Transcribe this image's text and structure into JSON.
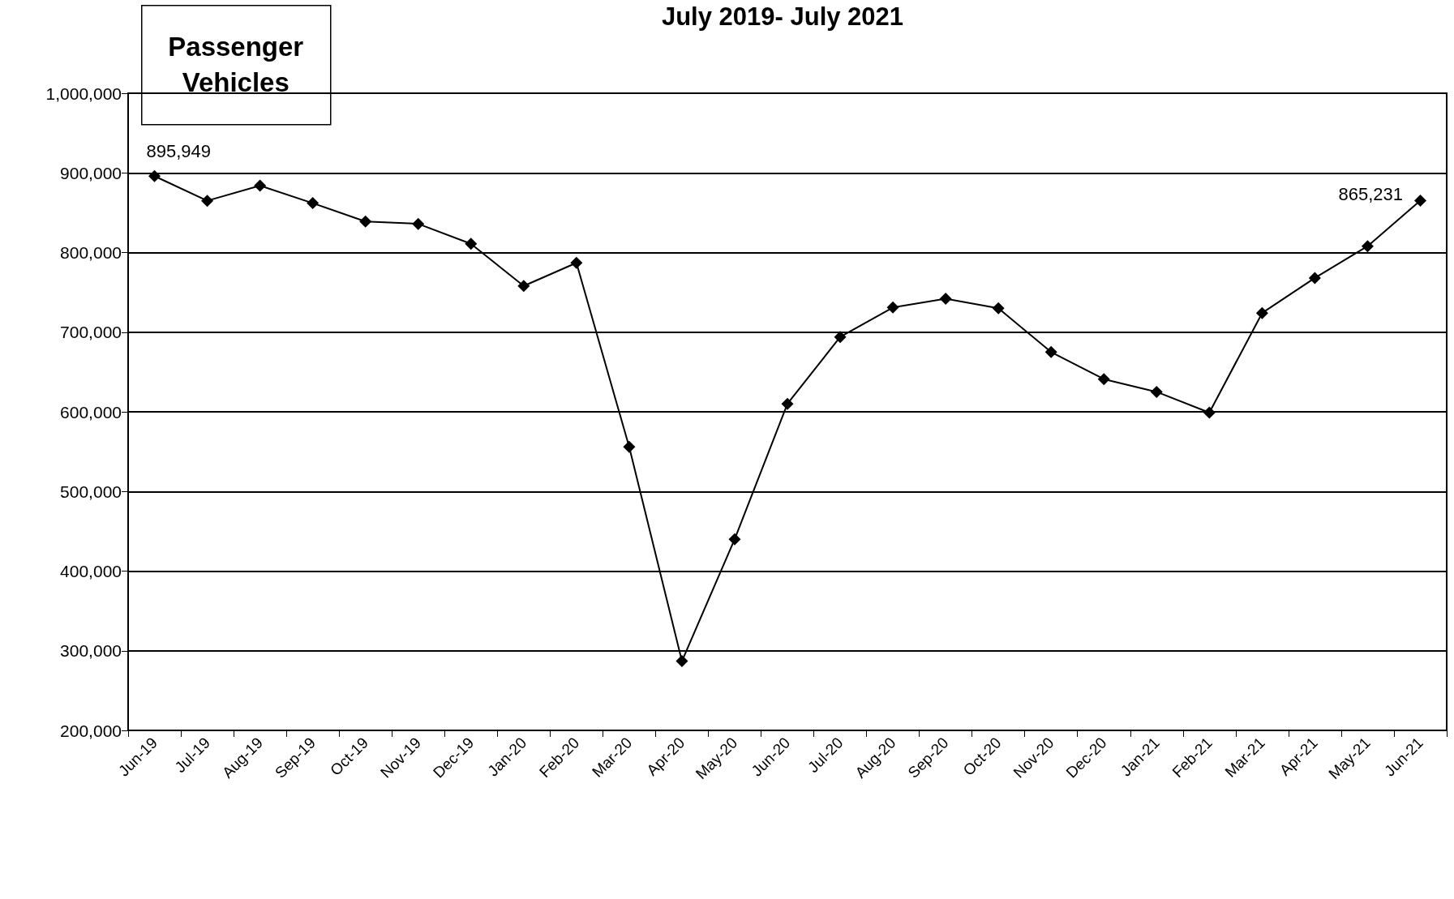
{
  "chart_data": {
    "type": "line",
    "title": "July 2019- July 2021",
    "annotations": [
      "Passenger Vehicles"
    ],
    "categories": [
      "Jun-19",
      "Jul-19",
      "Aug-19",
      "Sep-19",
      "Oct-19",
      "Nov-19",
      "Dec-19",
      "Jan-20",
      "Feb-20",
      "Mar-20",
      "Apr-20",
      "May-20",
      "Jun-20",
      "Jul-20",
      "Aug-20",
      "Sep-20",
      "Oct-20",
      "Nov-20",
      "Dec-20",
      "Jan-21",
      "Feb-21",
      "Mar-21",
      "Apr-21",
      "May-21",
      "Jun-21"
    ],
    "series": [
      {
        "color": "#000000",
        "values": [
          895949,
          865000,
          884000,
          862000,
          839000,
          836000,
          811000,
          758000,
          787000,
          556000,
          287000,
          440000,
          610000,
          694000,
          731000,
          742000,
          730000,
          675000,
          641000,
          625000,
          599000,
          724000,
          768000,
          808000,
          865231
        ],
        "value_labels": [
          "895,949",
          null,
          null,
          null,
          null,
          null,
          null,
          null,
          null,
          null,
          null,
          null,
          null,
          null,
          null,
          null,
          null,
          null,
          null,
          null,
          null,
          null,
          null,
          null,
          "865,231"
        ]
      }
    ],
    "ylim": [
      200000,
      1000000
    ],
    "yticks": [
      {
        "value": 200000,
        "label": "200,000"
      },
      {
        "value": 300000,
        "label": "300,000"
      },
      {
        "value": 400000,
        "label": "400,000"
      },
      {
        "value": 500000,
        "label": "500,000"
      },
      {
        "value": 600000,
        "label": "600,000"
      },
      {
        "value": 700000,
        "label": "700,000"
      },
      {
        "value": 800000,
        "label": "800,000"
      },
      {
        "value": 900000,
        "label": "900,000"
      },
      {
        "value": 1000000,
        "label": "1,000,000"
      }
    ],
    "grid": "y",
    "marker": "diamond",
    "line_style": "solid"
  }
}
